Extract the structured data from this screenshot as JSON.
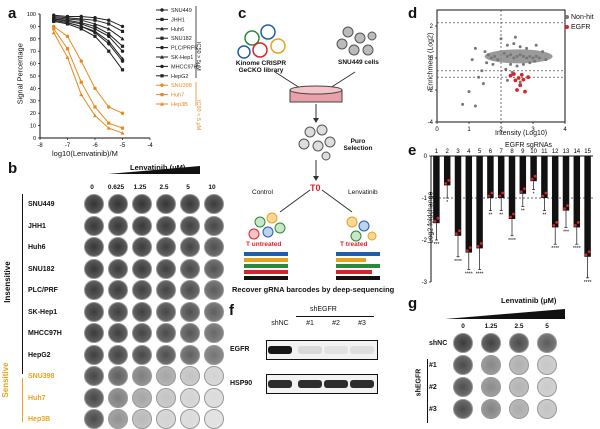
{
  "panels": {
    "a": "a",
    "b": "b",
    "c": "c",
    "d": "d",
    "e": "e",
    "f": "f",
    "g": "g"
  },
  "panel_a": {
    "chart_data": {
      "type": "line",
      "xlabel": "log10(Lenvatinib)/M",
      "ylabel": "Signal Percentage",
      "xlim": [
        -8,
        -4
      ],
      "ylim": [
        0,
        100
      ],
      "x_ticks": [
        "-8",
        "-7",
        "-6",
        "-5",
        "-4"
      ],
      "y_ticks": [
        "0",
        "10",
        "20",
        "30",
        "40",
        "50",
        "60",
        "70",
        "80",
        "90",
        "100"
      ],
      "x": [
        -7.5,
        -7.0,
        -6.5,
        -6.0,
        -5.5,
        -5.0
      ],
      "series": [
        {
          "name": "SNU449",
          "group": "insensitive",
          "values": [
            99,
            98,
            98,
            97,
            95,
            90
          ]
        },
        {
          "name": "JHH1",
          "group": "insensitive",
          "values": [
            98,
            97,
            96,
            95,
            92,
            86
          ]
        },
        {
          "name": "Huh6",
          "group": "insensitive",
          "values": [
            97,
            96,
            95,
            92,
            88,
            80
          ]
        },
        {
          "name": "SNU182",
          "group": "insensitive",
          "values": [
            96,
            95,
            93,
            90,
            84,
            74
          ]
        },
        {
          "name": "PLC/PRF5",
          "group": "insensitive",
          "values": [
            96,
            94,
            92,
            88,
            82,
            70
          ]
        },
        {
          "name": "SK-Hep1",
          "group": "insensitive",
          "values": [
            95,
            93,
            90,
            86,
            78,
            64
          ]
        },
        {
          "name": "MHCC97H",
          "group": "insensitive",
          "values": [
            95,
            93,
            90,
            85,
            76,
            62
          ]
        },
        {
          "name": "HepG2",
          "group": "insensitive",
          "values": [
            94,
            92,
            88,
            82,
            70,
            55
          ]
        },
        {
          "name": "SNU398",
          "group": "sensitive",
          "values": [
            90,
            82,
            62,
            40,
            25,
            20
          ]
        },
        {
          "name": "Huh7",
          "group": "sensitive",
          "values": [
            88,
            72,
            45,
            25,
            12,
            8
          ]
        },
        {
          "name": "Hep3B",
          "group": "sensitive",
          "values": [
            85,
            65,
            35,
            18,
            8,
            4
          ]
        }
      ],
      "bracket_labels": {
        "insensitive": "IC50 > 5μM",
        "sensitive": "IC50 < 5 μM"
      },
      "colors": {
        "insensitive": "#222222",
        "sensitive": "#e8891f"
      }
    }
  },
  "panel_b": {
    "title": "Lenvatinib (μM)",
    "doses": [
      "0",
      "0.625",
      "1.25",
      "2.5",
      "5",
      "10"
    ],
    "insensitive_label": "Insensitive",
    "sensitive_label": "Sensitive",
    "rows": [
      {
        "name": "SNU449",
        "sensitive": false,
        "intensity": [
          0.92,
          0.92,
          0.92,
          0.91,
          0.9,
          0.88
        ]
      },
      {
        "name": "JHH1",
        "sensitive": false,
        "intensity": [
          0.9,
          0.9,
          0.9,
          0.88,
          0.86,
          0.82
        ]
      },
      {
        "name": "Huh6",
        "sensitive": false,
        "intensity": [
          0.9,
          0.9,
          0.88,
          0.86,
          0.84,
          0.78
        ]
      },
      {
        "name": "SNU182",
        "sensitive": false,
        "intensity": [
          0.9,
          0.88,
          0.88,
          0.86,
          0.82,
          0.76
        ]
      },
      {
        "name": "PLC/PRF",
        "sensitive": false,
        "intensity": [
          0.88,
          0.88,
          0.86,
          0.84,
          0.8,
          0.72
        ]
      },
      {
        "name": "SK-Hep1",
        "sensitive": false,
        "intensity": [
          0.88,
          0.86,
          0.86,
          0.82,
          0.78,
          0.7
        ]
      },
      {
        "name": "MHCC97H",
        "sensitive": false,
        "intensity": [
          0.88,
          0.86,
          0.84,
          0.8,
          0.75,
          0.66
        ]
      },
      {
        "name": "HepG2",
        "sensitive": false,
        "intensity": [
          0.86,
          0.84,
          0.82,
          0.78,
          0.7,
          0.6
        ]
      },
      {
        "name": "SNU398",
        "sensitive": true,
        "intensity": [
          0.82,
          0.7,
          0.55,
          0.35,
          0.2,
          0.12
        ]
      },
      {
        "name": "Huh7",
        "sensitive": true,
        "intensity": [
          0.82,
          0.55,
          0.35,
          0.2,
          0.12,
          0.08
        ]
      },
      {
        "name": "Hep3B",
        "sensitive": true,
        "intensity": [
          0.8,
          0.45,
          0.25,
          0.12,
          0.08,
          0.05
        ]
      }
    ],
    "colors": {
      "sensitive_label": "#e8a21f",
      "insensitive_label": "#111111"
    }
  },
  "panel_c": {
    "library_label": "Kinome CRISPR GeCKO library",
    "cells_label": "SNU449 cells",
    "selection_label": "Puro Selection",
    "t0_label": "T0",
    "control_label": "Control",
    "lenvatinib_label": "Lenvatinib",
    "untreated_label": "T untreated",
    "treated_label": "T treated",
    "recover_label": "Recover gRNA barcodes by deep-sequencing",
    "colors": {
      "t0": "#d6252a",
      "t_label": "#d6252a"
    }
  },
  "panel_d": {
    "chart_data": {
      "type": "scatter",
      "xlabel": "Intensity (Log10)",
      "ylabel": "Enrichment (Log2)",
      "xlim": [
        0,
        4
      ],
      "ylim": [
        -4,
        3
      ],
      "x_ticks": [
        "0",
        "1",
        "2",
        "3",
        "4"
      ],
      "y_ticks": [
        "-4",
        "-2",
        "0",
        "2"
      ],
      "legend": [
        "Non-hit",
        "EGFR"
      ],
      "legend_position": "top-right",
      "dashed_lines": {
        "x": [
          2
        ],
        "y": [
          2.2,
          -0.8,
          -1.2
        ]
      },
      "series": [
        {
          "name": "Non-hit",
          "color": "#777777",
          "points": [
            [
              2.1,
              0.3
            ],
            [
              2.2,
              0.1
            ],
            [
              2.3,
              0.2
            ],
            [
              2.4,
              0.0
            ],
            [
              2.5,
              0.1
            ],
            [
              2.6,
              0.2
            ],
            [
              2.7,
              0.1
            ],
            [
              2.8,
              0.0
            ],
            [
              2.9,
              0.1
            ],
            [
              3.0,
              0.0
            ],
            [
              3.1,
              0.1
            ],
            [
              3.2,
              0.0
            ],
            [
              2.2,
              0.8
            ],
            [
              2.4,
              0.9
            ],
            [
              2.6,
              0.7
            ],
            [
              2.8,
              0.6
            ],
            [
              2.3,
              -0.4
            ],
            [
              2.5,
              -0.5
            ],
            [
              2.7,
              -0.4
            ],
            [
              2.9,
              -0.3
            ],
            [
              3.05,
              -0.2
            ],
            [
              2.15,
              -0.7
            ],
            [
              2.35,
              -0.9
            ],
            [
              1.5,
              0.4
            ],
            [
              1.6,
              0.2
            ],
            [
              1.7,
              0.0
            ],
            [
              1.8,
              0.1
            ],
            [
              1.9,
              -0.1
            ],
            [
              1.55,
              -0.3
            ],
            [
              1.75,
              -0.4
            ],
            [
              1.4,
              -0.8
            ],
            [
              1.3,
              -1.2
            ],
            [
              1.45,
              -1.6
            ],
            [
              1.2,
              0.6
            ],
            [
              1.1,
              -0.1
            ],
            [
              1.0,
              -2.1
            ],
            [
              0.8,
              -2.9
            ],
            [
              1.2,
              -3.0
            ],
            [
              2.0,
              1.2
            ],
            [
              2.45,
              1.3
            ],
            [
              2.2,
              -1.4
            ],
            [
              2.6,
              -1.5
            ],
            [
              3.1,
              0.8
            ],
            [
              3.3,
              0.4
            ],
            [
              3.4,
              -0.1
            ]
          ]
        },
        {
          "name": "EGFR",
          "color": "#d6252a",
          "points": [
            [
              2.3,
              -1.1
            ],
            [
              2.45,
              -1.4
            ],
            [
              2.55,
              -1.25
            ],
            [
              2.6,
              -1.7
            ],
            [
              2.7,
              -1.35
            ],
            [
              2.75,
              -2.1
            ],
            [
              2.5,
              -2.0
            ],
            [
              2.85,
              -1.2
            ],
            [
              2.4,
              -1.0
            ],
            [
              2.65,
              -1.05
            ]
          ]
        }
      ]
    }
  },
  "panel_e": {
    "chart_data": {
      "type": "bar",
      "title": "EGFR sgRNAs",
      "ylabel": "Log2 foldchange",
      "categories": [
        "1",
        "2",
        "3",
        "4",
        "5",
        "6",
        "7",
        "8",
        "9",
        "10",
        "11",
        "12",
        "13",
        "14",
        "15"
      ],
      "values": [
        -1.6,
        -0.7,
        -1.9,
        -2.3,
        -2.2,
        -1.0,
        -1.0,
        -1.5,
        -0.9,
        -0.6,
        -1.0,
        -1.7,
        -1.3,
        -1.7,
        -2.4
      ],
      "errors": [
        0.4,
        0.3,
        0.5,
        0.4,
        0.5,
        0.3,
        0.3,
        0.4,
        0.3,
        0.2,
        0.3,
        0.4,
        0.4,
        0.4,
        0.5
      ],
      "significance": [
        "***",
        "*",
        "****",
        "****",
        "****",
        "**",
        "**",
        "****",
        "**",
        "*",
        "**",
        "****",
        "***",
        "****",
        "****"
      ],
      "ylim": [
        -3,
        0
      ],
      "y_ticks": [
        "0",
        "-1",
        "-2",
        "-3"
      ],
      "dashed_line_y": -1,
      "colors": {
        "bar": "#111111",
        "dot": "#d6252a"
      }
    }
  },
  "panel_f": {
    "group_label": "shEGFR",
    "lanes": [
      "shNC",
      "#1",
      "#2",
      "#3"
    ],
    "bands": [
      {
        "name": "EGFR",
        "intensity": [
          0.95,
          0.1,
          0.06,
          0.08
        ]
      },
      {
        "name": "HSP90",
        "intensity": [
          0.85,
          0.85,
          0.85,
          0.85
        ]
      }
    ]
  },
  "panel_g": {
    "title": "Lenvatinib (μM)",
    "doses": [
      "0",
      "1.25",
      "2.5",
      "5"
    ],
    "group_label": "shEGFR",
    "rows": [
      {
        "name": "shNC",
        "intensity": [
          0.88,
          0.85,
          0.8,
          0.72
        ]
      },
      {
        "name": "#1",
        "intensity": [
          0.8,
          0.5,
          0.3,
          0.18
        ]
      },
      {
        "name": "#2",
        "intensity": [
          0.78,
          0.48,
          0.28,
          0.16
        ]
      },
      {
        "name": "#3",
        "intensity": [
          0.8,
          0.52,
          0.32,
          0.2
        ]
      }
    ]
  }
}
